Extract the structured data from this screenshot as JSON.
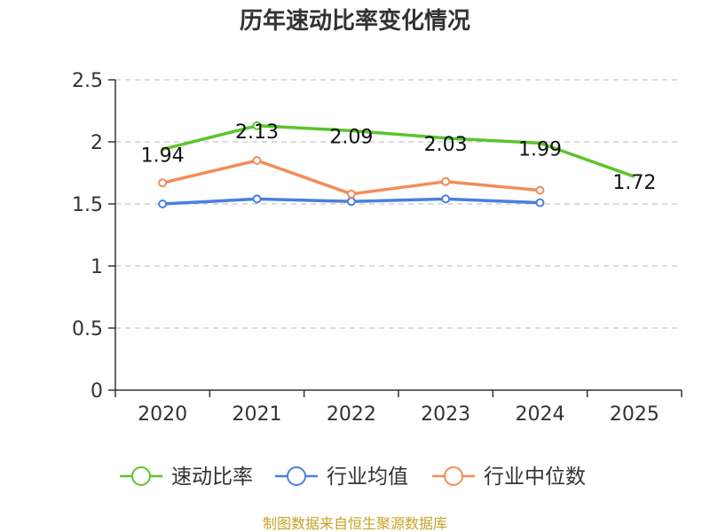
{
  "chart_data": {
    "type": "line",
    "title": "历年速动比率变化情况",
    "categories": [
      "2020",
      "2021",
      "2022",
      "2023",
      "2024",
      "2025"
    ],
    "ylim": [
      0,
      2.5
    ],
    "yticks": [
      "0",
      "0.5",
      "1",
      "1.5",
      "2",
      "2.5"
    ],
    "ytick_values": [
      0,
      0.5,
      1,
      1.5,
      2,
      2.5
    ],
    "grid": true,
    "series": [
      {
        "name": "速动比率",
        "color": "#5cc42b",
        "values": [
          1.94,
          2.13,
          2.09,
          2.03,
          1.99,
          1.72
        ],
        "labels": [
          "1.94",
          "2.13",
          "2.09",
          "2.03",
          "1.99",
          "1.72"
        ],
        "markers": [
          false,
          true,
          false,
          false,
          false,
          false
        ],
        "show_labels": true
      },
      {
        "name": "行业均值",
        "color": "#4a7fe0",
        "values": [
          1.5,
          1.54,
          1.52,
          1.54,
          1.51,
          null
        ],
        "markers": [
          true,
          true,
          true,
          true,
          true,
          false
        ],
        "show_labels": false
      },
      {
        "name": "行业中位数",
        "color": "#f58b57",
        "values": [
          1.67,
          1.85,
          1.58,
          1.68,
          1.61,
          null
        ],
        "markers": [
          true,
          true,
          true,
          true,
          true,
          false
        ],
        "show_labels": false
      }
    ],
    "legend_position": "bottom",
    "source": "制图数据来自恒生聚源数据库"
  }
}
